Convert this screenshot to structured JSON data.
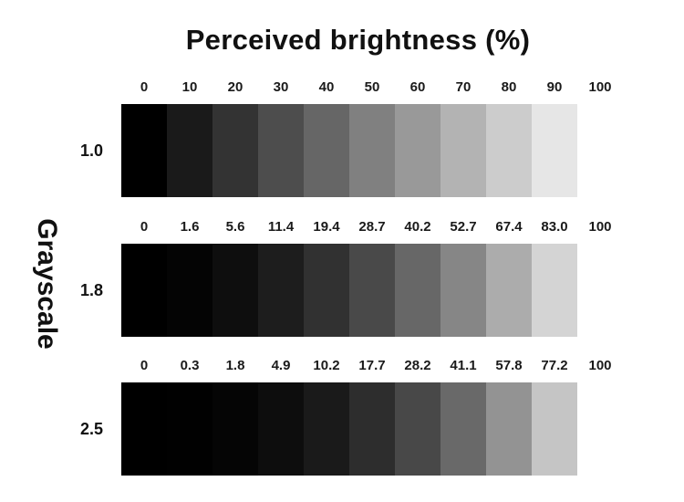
{
  "chart_data": {
    "type": "heatmap",
    "title": "Perceived brightness (%)",
    "ylabel": "Grayscale",
    "background_color": "#ffffff",
    "text_color": "#111111",
    "segments_per_row": 11,
    "rows": [
      {
        "gamma": "1.0",
        "perceived_brightness": [
          "0",
          "10",
          "20",
          "30",
          "40",
          "50",
          "60",
          "70",
          "80",
          "90",
          "100"
        ],
        "segment_colors": [
          "#000000",
          "#1a1a1a",
          "#333333",
          "#4d4d4d",
          "#666666",
          "#808080",
          "#999999",
          "#b3b3b3",
          "#cccccc",
          "#e6e6e6",
          "#ffffff"
        ]
      },
      {
        "gamma": "1.8",
        "perceived_brightness": [
          "0",
          "1.6",
          "5.6",
          "11.4",
          "19.4",
          "28.7",
          "40.2",
          "52.7",
          "67.4",
          "83.0",
          "100"
        ],
        "segment_colors": [
          "#000000",
          "#040404",
          "#0e0e0e",
          "#1d1d1d",
          "#313131",
          "#494949",
          "#676767",
          "#868686",
          "#acacac",
          "#d4d4d4",
          "#ffffff"
        ]
      },
      {
        "gamma": "2.5",
        "perceived_brightness": [
          "0",
          "0.3",
          "1.8",
          "4.9",
          "10.2",
          "17.7",
          "28.2",
          "41.1",
          "57.8",
          "77.2",
          "100"
        ],
        "segment_colors": [
          "#000000",
          "#010101",
          "#050505",
          "#0d0d0d",
          "#1a1a1a",
          "#2d2d2d",
          "#484848",
          "#696969",
          "#939393",
          "#c5c5c5",
          "#ffffff"
        ]
      }
    ]
  }
}
